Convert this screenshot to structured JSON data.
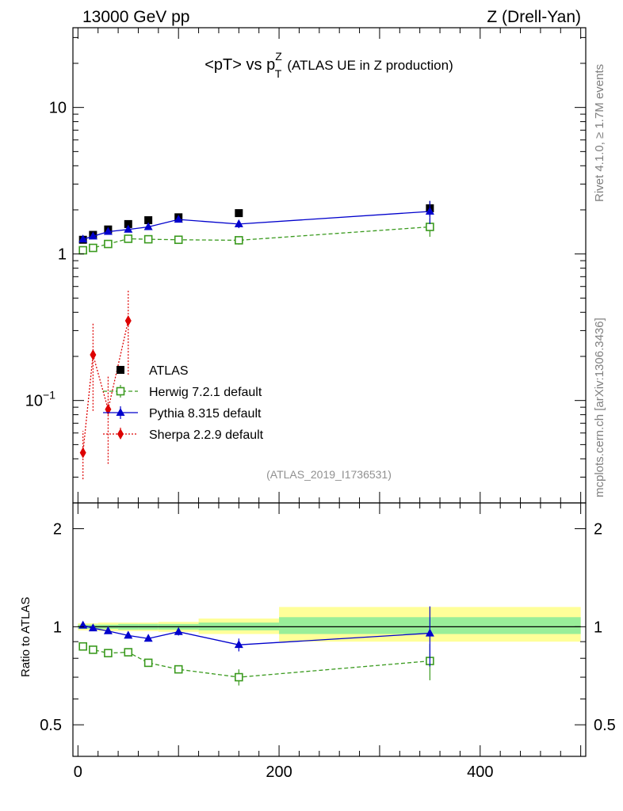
{
  "header": {
    "left": "13000 GeV pp",
    "right": "Z (Drell-Yan)"
  },
  "side_labels": {
    "rivet": "Rivet 4.1.0, ≥ 1.7M events",
    "mcplots": "mcplots.cern.ch [arXiv:1306.3436]"
  },
  "chart_data": [
    {
      "panel": "main",
      "type": "scatter",
      "title_main": "<pT> vs p",
      "title_sup": "Z",
      "title_sub": "T",
      "title_rest": "(ATLAS UE in Z production)",
      "analysis_id": "(ATLAS_2019_I1736531)",
      "yscale": "log",
      "ylim": [
        0.02,
        35
      ],
      "xlim": [
        -5,
        505
      ],
      "y_ticks": [
        {
          "value": 10,
          "label": "10"
        },
        {
          "value": 1,
          "label": "1"
        },
        {
          "value": 0.1,
          "label": "10",
          "sup": "−1"
        }
      ],
      "x": [
        5,
        15,
        30,
        50,
        70,
        100,
        160,
        350
      ],
      "series": [
        {
          "name": "ATLAS",
          "color": "#000000",
          "marker": "square-filled",
          "line": "none",
          "values": [
            1.25,
            1.35,
            1.47,
            1.6,
            1.7,
            1.78,
            1.9,
            2.05
          ],
          "err": [
            0.03,
            0.03,
            0.03,
            0.04,
            0.04,
            0.05,
            0.06,
            0.25
          ]
        },
        {
          "name": "Herwig 7.2.1 default",
          "color": "#3a9a1e",
          "marker": "square-open",
          "line": "dashed",
          "values": [
            1.06,
            1.1,
            1.17,
            1.27,
            1.26,
            1.25,
            1.24,
            1.53
          ],
          "err": [
            0.02,
            0.02,
            0.03,
            0.03,
            0.04,
            0.05,
            0.08,
            0.22
          ]
        },
        {
          "name": "Pythia 8.315 default",
          "color": "#0000cc",
          "marker": "triangle",
          "line": "solid",
          "values": [
            1.26,
            1.32,
            1.42,
            1.47,
            1.53,
            1.72,
            1.6,
            1.95
          ],
          "err": [
            0.02,
            0.02,
            0.03,
            0.03,
            0.04,
            0.05,
            0.1,
            0.35
          ]
        },
        {
          "name": "Sherpa 2.2.9 default",
          "color": "#dd0000",
          "marker": "diamond",
          "line": "dotted",
          "x": [
            5,
            15,
            30,
            50
          ],
          "values": [
            0.044,
            0.205,
            0.087,
            0.35
          ],
          "err_low": [
            0.015,
            0.12,
            0.05,
            0.2
          ],
          "err_high": [
            0.018,
            0.13,
            0.06,
            0.22
          ]
        }
      ]
    },
    {
      "panel": "ratio",
      "type": "line",
      "ylabel": "Ratio to ATLAS",
      "yscale": "log",
      "ylim": [
        0.4,
        2.4
      ],
      "xlim": [
        -5,
        505
      ],
      "y_ticks": [
        {
          "value": 2,
          "label": "2"
        },
        {
          "value": 1,
          "label": "1"
        },
        {
          "value": 0.5,
          "label": "0.5"
        }
      ],
      "x_ticks": [
        {
          "value": 0,
          "label": "0"
        },
        {
          "value": 200,
          "label": "200"
        },
        {
          "value": 400,
          "label": "400"
        }
      ],
      "bands": [
        {
          "x": [
            0,
            10
          ],
          "green": [
            0.985,
            1.015
          ],
          "yellow": [
            0.975,
            1.025
          ]
        },
        {
          "x": [
            10,
            20
          ],
          "green": [
            0.985,
            1.015
          ],
          "yellow": [
            0.975,
            1.025
          ]
        },
        {
          "x": [
            20,
            40
          ],
          "green": [
            0.985,
            1.015
          ],
          "yellow": [
            0.97,
            1.03
          ]
        },
        {
          "x": [
            40,
            60
          ],
          "green": [
            0.98,
            1.02
          ],
          "yellow": [
            0.97,
            1.03
          ]
        },
        {
          "x": [
            60,
            80
          ],
          "green": [
            0.98,
            1.02
          ],
          "yellow": [
            0.97,
            1.03
          ]
        },
        {
          "x": [
            80,
            120
          ],
          "green": [
            0.98,
            1.02
          ],
          "yellow": [
            0.965,
            1.035
          ]
        },
        {
          "x": [
            120,
            200
          ],
          "green": [
            0.975,
            1.03
          ],
          "yellow": [
            0.95,
            1.06
          ]
        },
        {
          "x": [
            200,
            500
          ],
          "green": [
            0.95,
            1.07
          ],
          "yellow": [
            0.9,
            1.15
          ]
        }
      ],
      "x": [
        5,
        15,
        30,
        50,
        70,
        100,
        160,
        350
      ],
      "series": [
        {
          "name": "Herwig 7.2.1 default",
          "color": "#3a9a1e",
          "marker": "square-open",
          "line": "dashed",
          "values": [
            0.87,
            0.85,
            0.83,
            0.835,
            0.775,
            0.74,
            0.7,
            0.785
          ],
          "err": [
            0.01,
            0.01,
            0.012,
            0.012,
            0.015,
            0.018,
            0.04,
            0.1
          ]
        },
        {
          "name": "Pythia 8.315 default",
          "color": "#0000cc",
          "marker": "triangle",
          "line": "solid",
          "values": [
            1.01,
            0.99,
            0.97,
            0.94,
            0.92,
            0.965,
            0.88,
            0.955
          ],
          "err": [
            0.01,
            0.01,
            0.012,
            0.012,
            0.015,
            0.025,
            0.04,
            0.2
          ]
        }
      ]
    }
  ]
}
